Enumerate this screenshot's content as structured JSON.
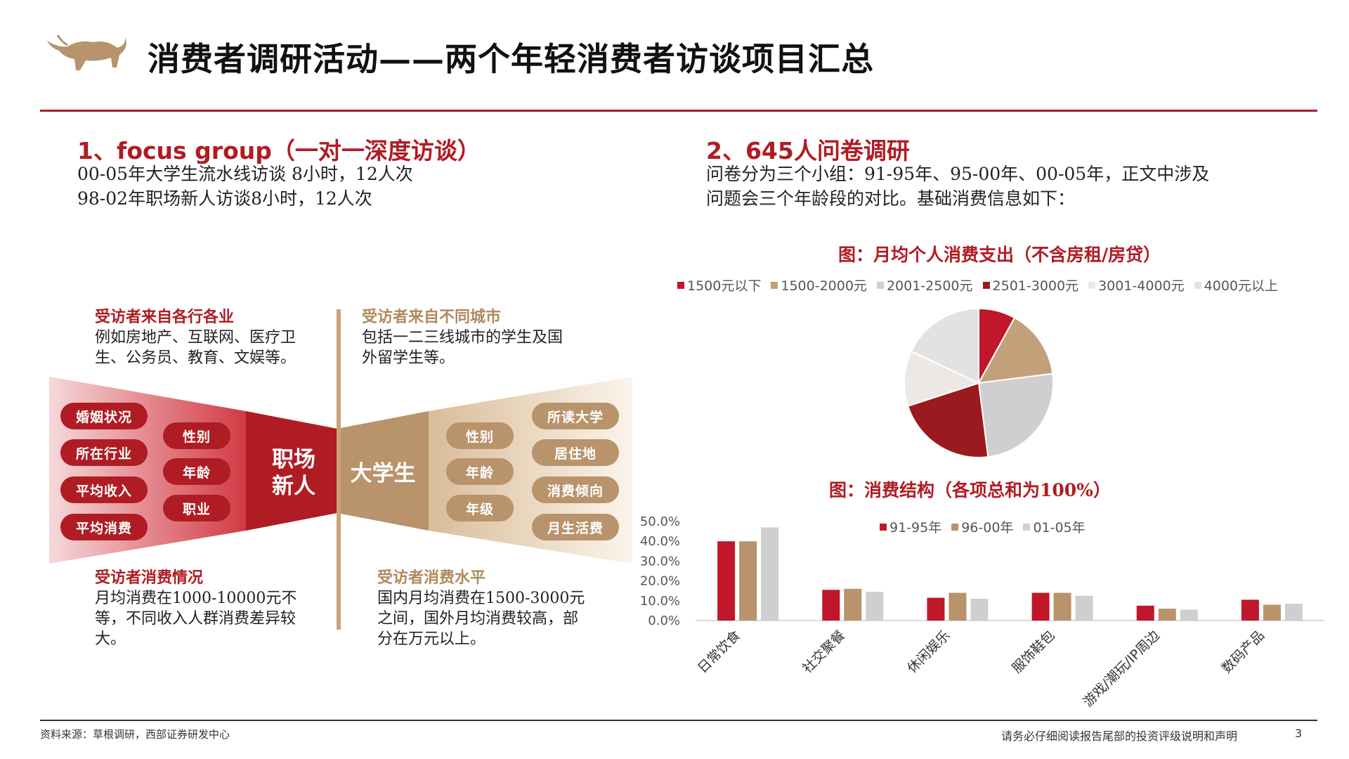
{
  "header": {
    "title": "消费者调研活动——两个年轻消费者访谈项目汇总",
    "logo_icon": "bull-logo-icon"
  },
  "colors": {
    "brand_red": "#b01c24",
    "tan": "#b8936b",
    "light_gray": "#d0cfcf"
  },
  "left": {
    "section_title": "1、focus group（一对一深度访谈）",
    "lines": [
      "00-05年大学生流水线访谈 8小时，12人次",
      "98-02年职场新人访谈8小时，12人次"
    ],
    "ann_top_left": {
      "heading": "受访者来自各行各业",
      "lines": [
        "例如房地产、互联网、医疗卫",
        "生、公务员、教育、文娱等。"
      ]
    },
    "ann_top_right": {
      "heading": "受访者来自不同城市",
      "lines": [
        "包括一二三线城市的学生及国",
        "外留学生等。"
      ]
    },
    "ann_bottom_left": {
      "heading": "受访者消费情况",
      "lines": [
        "月均消费在1000-10000元不",
        "等，不同收入人群消费差异较",
        "大。"
      ]
    },
    "ann_bottom_right": {
      "heading": "受访者消费水平",
      "lines": [
        "国内月均消费在1500-3000元",
        "之间，国外月均消费较高，部",
        "分在万元以上。"
      ]
    },
    "center_left": [
      "职场",
      "新人"
    ],
    "center_right": "大学生",
    "pills_left_outer": [
      "婚姻状况",
      "所在行业",
      "平均收入",
      "平均消费"
    ],
    "pills_left_inner": [
      "性别",
      "年龄",
      "职业"
    ],
    "pills_right_inner": [
      "性别",
      "年龄",
      "年级"
    ],
    "pills_right_outer": [
      "所读大学",
      "居住地",
      "消费倾向",
      "月生活费"
    ]
  },
  "right": {
    "section_title": "2、645人问卷调研",
    "lines": [
      "问卷分为三个小组：91-95年、95-00年、00-05年，正文中涉及",
      "问题会三个年龄段的对比。基础消费信息如下："
    ]
  },
  "chart_data": [
    {
      "type": "pie",
      "title": "图：月均个人消费支出（不含房租/房贷）",
      "categories": [
        "1500元以下",
        "1500-2000元",
        "2001-2500元",
        "2501-3000元",
        "3001-4000元",
        "4000元以上"
      ],
      "values": [
        8,
        15,
        25,
        22,
        12,
        18
      ],
      "colors": [
        "#c0172a",
        "#c2a07a",
        "#cfcfcf",
        "#9b1a1f",
        "#ede8e4",
        "#e2e2e2"
      ],
      "legend_position": "top"
    },
    {
      "type": "bar",
      "title": "图：消费结构（各项总和为100%）",
      "categories": [
        "日常饮食",
        "社交聚餐",
        "休闲娱乐",
        "服饰鞋包",
        "游戏/潮玩/IP周边",
        "数码产品"
      ],
      "series": [
        {
          "name": "91-95年",
          "values": [
            40.0,
            15.5,
            11.5,
            14.0,
            7.5,
            10.5
          ],
          "color": "#c0172a"
        },
        {
          "name": "96-00年",
          "values": [
            40.0,
            16.0,
            14.0,
            14.0,
            6.0,
            8.0
          ],
          "color": "#b8936b"
        },
        {
          "name": "01-05年",
          "values": [
            47.0,
            14.5,
            11.0,
            12.5,
            5.5,
            8.5
          ],
          "color": "#cfcfcf"
        }
      ],
      "yticks": [
        "0.0%",
        "10.0%",
        "20.0%",
        "30.0%",
        "40.0%",
        "50.0%"
      ],
      "ylim": [
        0,
        50
      ],
      "legend_position": "top"
    }
  ],
  "footer": {
    "source": "资料来源：草根调研，西部证券研发中心",
    "disclaimer": "请务必仔细阅读报告尾部的投资评级说明和声明",
    "page": "3"
  }
}
